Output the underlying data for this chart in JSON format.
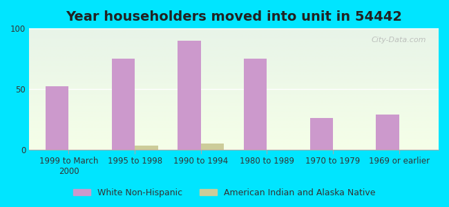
{
  "title": "Year householders moved into unit in 54442",
  "categories": [
    "1999 to March\n2000",
    "1995 to 1998",
    "1990 to 1994",
    "1980 to 1989",
    "1970 to 1979",
    "1969 or earlier"
  ],
  "white_non_hispanic": [
    52,
    75,
    90,
    75,
    26,
    29
  ],
  "american_indian": [
    0,
    3,
    5,
    0,
    0,
    0
  ],
  "bar_color_white": "#cc99cc",
  "bar_color_indian": "#cccc99",
  "background_outer": "#00e5ff",
  "background_inner_top": "#e8f4e8",
  "background_inner_bottom": "#f5ffe8",
  "ylim": [
    0,
    100
  ],
  "yticks": [
    0,
    50,
    100
  ],
  "title_fontsize": 14,
  "tick_fontsize": 8.5,
  "legend_fontsize": 9,
  "watermark": "City-Data.com"
}
